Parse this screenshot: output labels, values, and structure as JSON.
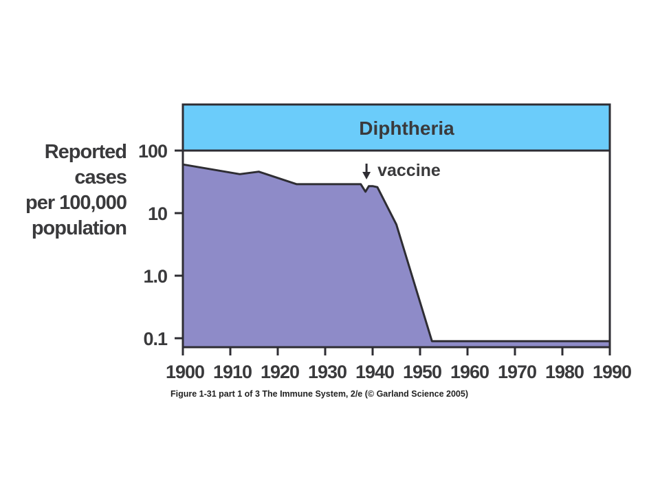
{
  "chart_data": {
    "type": "area",
    "title": "Diphtheria",
    "ylabel_lines": [
      "Reported",
      "cases",
      "per 100,000",
      "population"
    ],
    "yscale": "log",
    "ylim": [
      0.1,
      100
    ],
    "yticks": [
      {
        "value": 100,
        "label": "100"
      },
      {
        "value": 10,
        "label": "10"
      },
      {
        "value": 1,
        "label": "1.0"
      },
      {
        "value": 0.1,
        "label": "0.1"
      }
    ],
    "xlim": [
      1900,
      1990
    ],
    "xticks": [
      {
        "value": 1900,
        "label": "1900"
      },
      {
        "value": 1910,
        "label": "1910"
      },
      {
        "value": 1920,
        "label": "1920"
      },
      {
        "value": 1930,
        "label": "1930"
      },
      {
        "value": 1940,
        "label": "1940"
      },
      {
        "value": 1950,
        "label": "1950"
      },
      {
        "value": 1960,
        "label": "1960"
      },
      {
        "value": 1970,
        "label": "1970"
      },
      {
        "value": 1980,
        "label": "1980"
      },
      {
        "value": 1990,
        "label": "1990"
      }
    ],
    "series": [
      {
        "x": [
          1900,
          1912,
          1916,
          1924,
          1930,
          1937.5,
          1938.5,
          1939.2,
          1940,
          1941,
          1945,
          1952.5,
          1960,
          1970,
          1980,
          1990
        ],
        "y": [
          60,
          42,
          46,
          29,
          29,
          29,
          22,
          27,
          27,
          26,
          6.6,
          0.09,
          0.09,
          0.09,
          0.09,
          0.09
        ]
      }
    ],
    "annotations": [
      {
        "text": "vaccine",
        "x": 1939,
        "arrow": "down"
      }
    ],
    "grid": false,
    "colors": {
      "fill": "#8e8bc8",
      "line": "#2e2d33",
      "title_band": "#6bccfa",
      "text": "#3a3a3c"
    }
  },
  "caption": "Figure 1-31 part 1 of 3  The Immune System, 2/e (© Garland Science 2005)"
}
